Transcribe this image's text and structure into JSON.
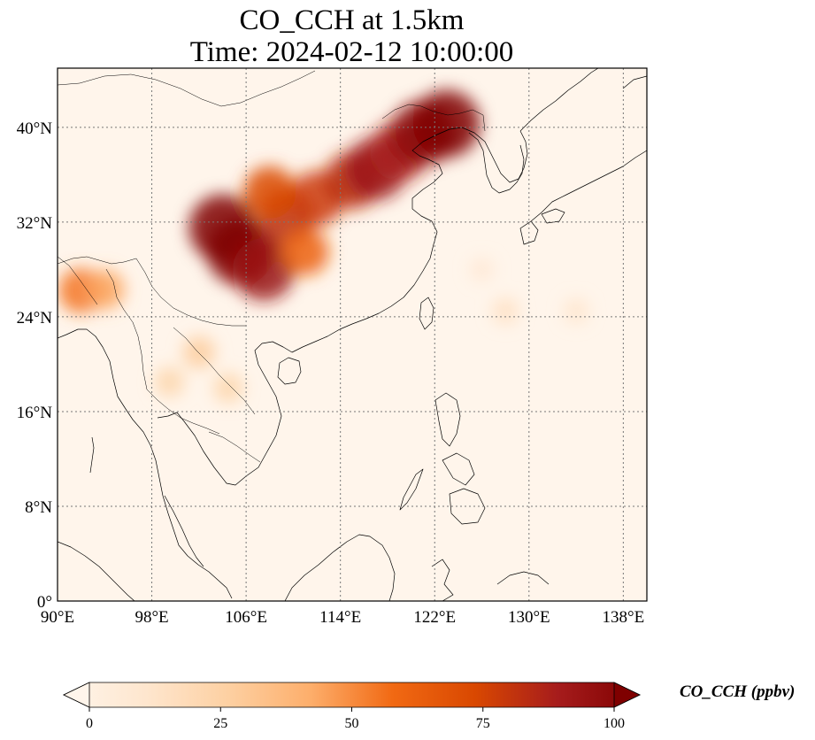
{
  "title": {
    "line1": "CO_CCH at 1.5km",
    "line2": "Time: 2024-02-12 10:00:00"
  },
  "map": {
    "extent": {
      "lon": [
        90,
        140
      ],
      "lat": [
        0,
        45
      ]
    },
    "lon_ticks": [
      90,
      98,
      106,
      114,
      122,
      130,
      138
    ],
    "lon_tick_labels": [
      "90°E",
      "98°E",
      "106°E",
      "114°E",
      "122°E",
      "130°E",
      "138°E"
    ],
    "lat_ticks": [
      0,
      8,
      16,
      24,
      32,
      40
    ],
    "lat_tick_labels": [
      "0°",
      "8°N",
      "16°N",
      "24°N",
      "32°N",
      "40°N"
    ],
    "gridlines": true,
    "background_color": "#fff5eb"
  },
  "colorbar": {
    "label": "CO_CCH (ppbv)",
    "min": 0,
    "max": 100,
    "ticks": [
      0,
      25,
      50,
      75,
      100
    ],
    "tick_labels": [
      "0",
      "25",
      "50",
      "75",
      "100"
    ],
    "extend": "both",
    "colormap": "OrRd",
    "colors": [
      "#fff5eb",
      "#fee6ce",
      "#fdd0a2",
      "#fdae6b",
      "#f16913",
      "#d94801",
      "#a61c1c",
      "#7f0000"
    ]
  },
  "chart_data": {
    "type": "heatmap",
    "variable": "CO_CCH",
    "units": "ppbv",
    "level": "1.5km",
    "time": "2024-02-12 10:00:00",
    "hotspots": [
      {
        "lon": 105.5,
        "lat": 29.5,
        "value": 100
      },
      {
        "lon": 104.0,
        "lat": 31.5,
        "value": 100
      },
      {
        "lon": 107.5,
        "lat": 28.0,
        "value": 90
      },
      {
        "lon": 109.5,
        "lat": 32.5,
        "value": 80
      },
      {
        "lon": 112.0,
        "lat": 34.0,
        "value": 75
      },
      {
        "lon": 108.0,
        "lat": 34.5,
        "value": 70
      },
      {
        "lon": 115.0,
        "lat": 35.5,
        "value": 80
      },
      {
        "lon": 117.0,
        "lat": 36.5,
        "value": 90
      },
      {
        "lon": 119.0,
        "lat": 38.0,
        "value": 85
      },
      {
        "lon": 121.0,
        "lat": 39.5,
        "value": 95
      },
      {
        "lon": 123.0,
        "lat": 40.3,
        "value": 100
      },
      {
        "lon": 111.0,
        "lat": 29.5,
        "value": 60
      },
      {
        "lon": 92.0,
        "lat": 26.2,
        "value": 55
      },
      {
        "lon": 94.0,
        "lat": 26.3,
        "value": 45
      },
      {
        "lon": 102.0,
        "lat": 21.0,
        "value": 30
      },
      {
        "lon": 99.5,
        "lat": 18.5,
        "value": 25
      },
      {
        "lon": 104.5,
        "lat": 18.0,
        "value": 25
      },
      {
        "lon": 128.0,
        "lat": 24.5,
        "value": 18
      },
      {
        "lon": 134.0,
        "lat": 24.5,
        "value": 15
      },
      {
        "lon": 126.0,
        "lat": 28.0,
        "value": 12
      }
    ]
  }
}
